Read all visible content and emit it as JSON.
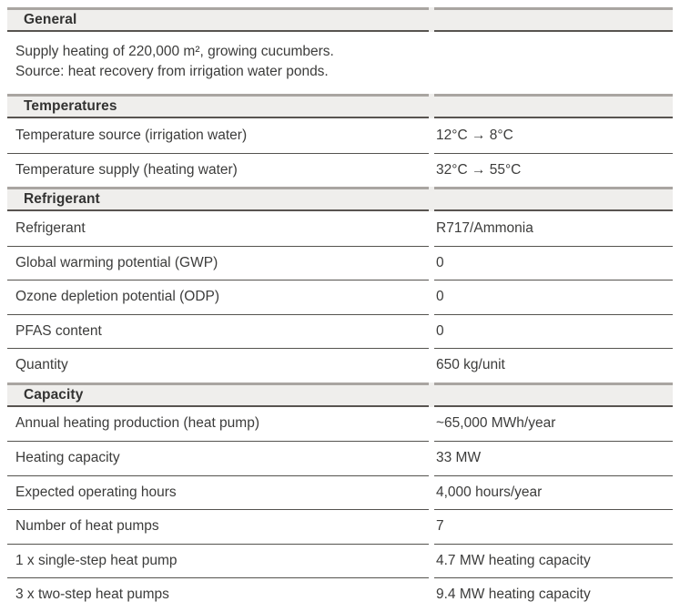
{
  "colors": {
    "header_bg": "#efeeec",
    "header_top_border": "#a9a5a1",
    "header_bottom_border": "#585450",
    "row_divider": "#55534f",
    "text": "#3c3c3b"
  },
  "sections": [
    {
      "title": "General",
      "description": [
        "Supply heating of 220,000 m², growing cucumbers.",
        "Source: heat recovery from irrigation water ponds."
      ],
      "rows": []
    },
    {
      "title": "Temperatures",
      "rows": [
        {
          "label": "Temperature source (irrigation water)",
          "value": "12°C → 8°C"
        },
        {
          "label": "Temperature supply (heating water)",
          "value": "32°C → 55°C"
        }
      ]
    },
    {
      "title": "Refrigerant",
      "rows": [
        {
          "label": "Refrigerant",
          "value": "R717/Ammonia"
        },
        {
          "label": "Global warming potential (GWP)",
          "value": "0"
        },
        {
          "label": "Ozone depletion potential (ODP)",
          "value": "0"
        },
        {
          "label": "PFAS content",
          "value": "0"
        },
        {
          "label": "Quantity",
          "value": "650 kg/unit"
        }
      ]
    },
    {
      "title": "Capacity",
      "rows": [
        {
          "label": "Annual heating production (heat pump)",
          "value": "~65,000 MWh/year"
        },
        {
          "label": "Heating capacity",
          "value": "33 MW"
        },
        {
          "label": "Expected operating hours",
          "value": "4,000 hours/year"
        },
        {
          "label": "Number of heat pumps",
          "value": "7"
        },
        {
          "label": "1 x single-step heat pump",
          "value": "4.7 MW heating capacity"
        },
        {
          "label": "3 x two-step heat pumps",
          "value": "9.4 MW heating capacity"
        }
      ]
    }
  ]
}
